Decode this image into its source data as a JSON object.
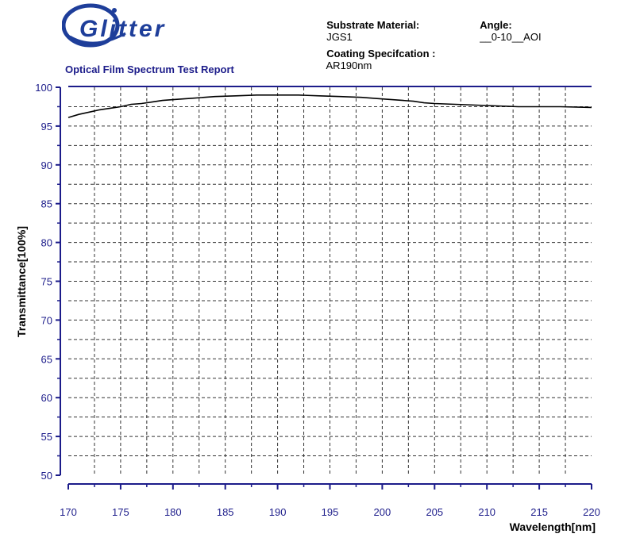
{
  "header": {
    "substrate_label": "Substrate Material:",
    "substrate_value": "JGS1",
    "angle_label": "Angle:",
    "angle_value": "__0-10__AOI",
    "coating_label": "Coating Specifcation :",
    "coating_value": "AR190nm"
  },
  "logo": {
    "text": "Glitter",
    "color": "#1e3e9a"
  },
  "report_title": "Optical Film Spectrum Test Report",
  "chart_data": {
    "type": "line",
    "title": "Optical Film Spectrum Test Report",
    "xlabel": "Wavelength[nm]",
    "ylabel": "Transmittance[100%]",
    "xlim": [
      170,
      220
    ],
    "ylim": [
      50,
      100
    ],
    "xticks": [
      170,
      175,
      180,
      185,
      190,
      195,
      200,
      205,
      210,
      215,
      220
    ],
    "yticks": [
      50,
      55,
      60,
      65,
      70,
      75,
      80,
      85,
      90,
      95,
      100
    ],
    "grid": true,
    "axis_color": "#1c1c8a",
    "line_color": "#000000",
    "series": [
      {
        "x": [
          170,
          171,
          172,
          173,
          174,
          175,
          176,
          177,
          178,
          179,
          180,
          182,
          184,
          186,
          188,
          190,
          192,
          194,
          196,
          198,
          200,
          202,
          203,
          204,
          205,
          207,
          209,
          211,
          213,
          215,
          217,
          220
        ],
        "values": [
          96.1,
          96.5,
          96.8,
          97.1,
          97.3,
          97.5,
          97.8,
          97.9,
          98.1,
          98.3,
          98.4,
          98.6,
          98.8,
          98.9,
          99.0,
          99.0,
          99.0,
          98.9,
          98.8,
          98.7,
          98.5,
          98.3,
          98.2,
          98.0,
          97.9,
          97.8,
          97.7,
          97.6,
          97.5,
          97.5,
          97.5,
          97.4
        ]
      }
    ]
  }
}
